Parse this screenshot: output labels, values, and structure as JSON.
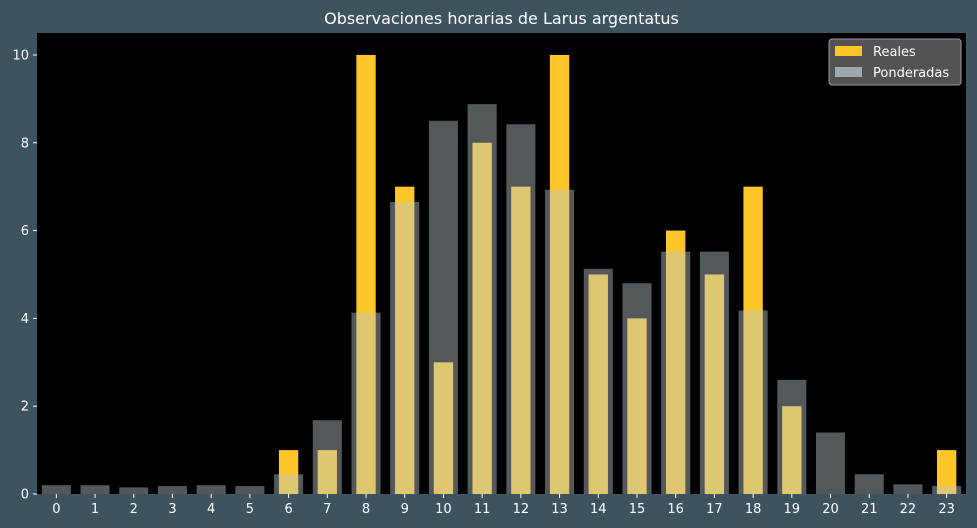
{
  "chart_data": {
    "type": "bar",
    "title": "Observaciones horarias de Larus argentatus",
    "xlabel": "",
    "ylabel": "",
    "categories": [
      "0",
      "1",
      "2",
      "3",
      "4",
      "5",
      "6",
      "7",
      "8",
      "9",
      "10",
      "11",
      "12",
      "13",
      "14",
      "15",
      "16",
      "17",
      "18",
      "19",
      "20",
      "21",
      "22",
      "23"
    ],
    "ylim": [
      0,
      10.5
    ],
    "yticks": [
      0,
      2,
      4,
      6,
      8,
      10
    ],
    "grid": false,
    "legend_position": "top-right",
    "series": [
      {
        "name": "Reales",
        "color": "#ffc629",
        "values": [
          0,
          0,
          0,
          0,
          0,
          0,
          1,
          1,
          10,
          7,
          3,
          8,
          7,
          10,
          5,
          4,
          6,
          5,
          7,
          2,
          0,
          0,
          0,
          1
        ]
      },
      {
        "name": "Ponderadas",
        "color": "#b9c6c9",
        "opacity": 0.45,
        "values": [
          0.2,
          0.2,
          0.15,
          0.18,
          0.2,
          0.18,
          0.45,
          1.68,
          4.13,
          6.65,
          8.5,
          8.88,
          8.42,
          6.93,
          5.13,
          4.8,
          5.52,
          5.52,
          4.18,
          2.6,
          1.4,
          0.45,
          0.22,
          0.18
        ]
      }
    ]
  }
}
